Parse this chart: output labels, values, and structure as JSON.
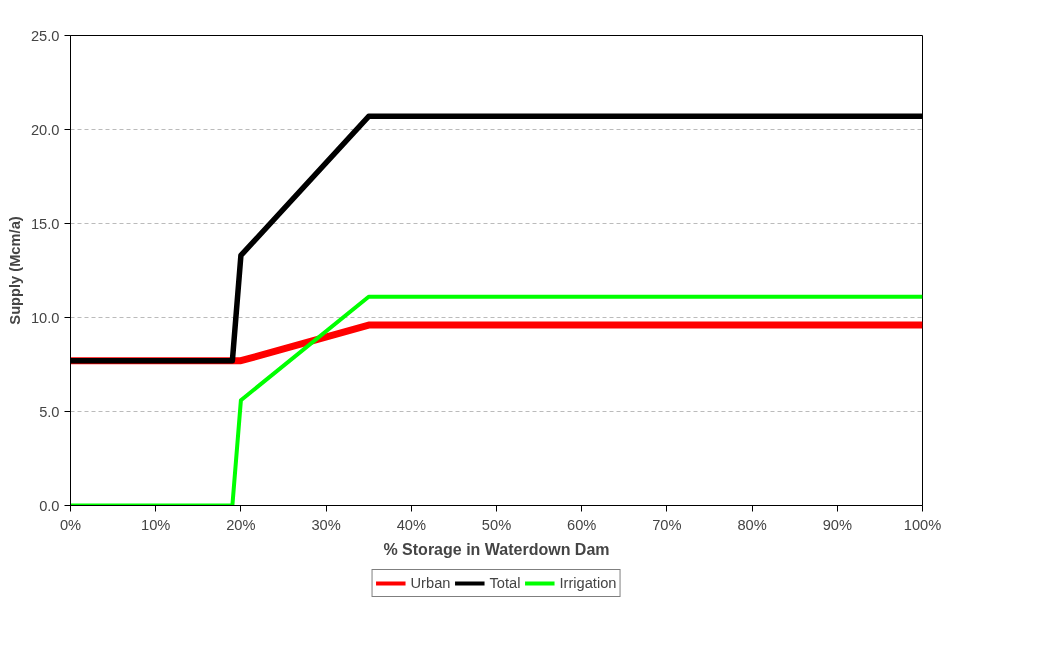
{
  "chart_data": {
    "type": "line",
    "xlabel": "% Storage in Waterdown Dam",
    "ylabel": "Supply (Mcm/a)",
    "xlim": [
      0,
      100
    ],
    "ylim": [
      0,
      25
    ],
    "xticks": [
      {
        "value": 0,
        "label": "0%"
      },
      {
        "value": 10,
        "label": "10%"
      },
      {
        "value": 20,
        "label": "20%"
      },
      {
        "value": 30,
        "label": "30%"
      },
      {
        "value": 40,
        "label": "40%"
      },
      {
        "value": 50,
        "label": "50%"
      },
      {
        "value": 60,
        "label": "60%"
      },
      {
        "value": 70,
        "label": "70%"
      },
      {
        "value": 80,
        "label": "80%"
      },
      {
        "value": 90,
        "label": "90%"
      },
      {
        "value": 100,
        "label": "100%"
      }
    ],
    "yticks": [
      {
        "value": 0,
        "label": "0.0"
      },
      {
        "value": 5,
        "label": "5.0"
      },
      {
        "value": 10,
        "label": "10.0"
      },
      {
        "value": 15,
        "label": "15.0"
      },
      {
        "value": 20,
        "label": "20.0"
      },
      {
        "value": 25,
        "label": "25.0"
      }
    ],
    "grid": "y",
    "legend": "bottom",
    "marker": "none",
    "line_style": "solid",
    "series": [
      {
        "name": "Urban",
        "color": "#ff0000",
        "x": [
          0,
          19,
          20,
          35,
          100
        ],
        "values": [
          7.7,
          7.7,
          7.7,
          9.6,
          9.6
        ]
      },
      {
        "name": "Total",
        "color": "#000000",
        "x": [
          0,
          19,
          20,
          35,
          100
        ],
        "values": [
          7.7,
          7.7,
          13.3,
          20.7,
          20.7
        ]
      },
      {
        "name": "Irrigation",
        "color": "#00ff00",
        "x": [
          0,
          19,
          20,
          35,
          100
        ],
        "values": [
          0,
          0,
          5.6,
          11.1,
          11.1
        ]
      }
    ]
  }
}
